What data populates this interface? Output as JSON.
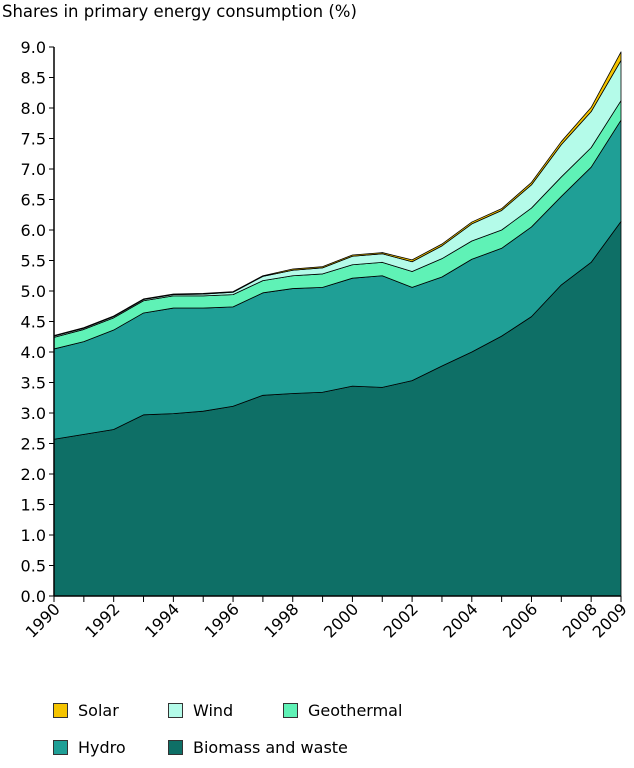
{
  "chart_data": {
    "type": "area",
    "stacked": true,
    "title": "Shares in primary energy consumption (%)",
    "xlabel": "",
    "ylabel": "",
    "x": [
      1990,
      1991,
      1992,
      1993,
      1994,
      1995,
      1996,
      1997,
      1998,
      1999,
      2000,
      2001,
      2002,
      2003,
      2004,
      2005,
      2006,
      2007,
      2008,
      2009
    ],
    "x_tick_labels": [
      "1990",
      "1992",
      "1994",
      "1996",
      "1998",
      "2000",
      "2002",
      "2004",
      "2006",
      "2008",
      "2009"
    ],
    "y_tick_labels": [
      "0.0",
      "0.5",
      "1.0",
      "1.5",
      "2.0",
      "2.5",
      "3.0",
      "3.5",
      "4.0",
      "4.5",
      "5.0",
      "5.5",
      "6.0",
      "6.5",
      "7.0",
      "7.5",
      "8.0",
      "8.5",
      "9.0"
    ],
    "ylim": [
      0,
      9
    ],
    "grid": false,
    "legend_position": "bottom",
    "series": [
      {
        "name": "Biomass and waste",
        "color": "#0e6f66",
        "values": [
          2.57,
          2.65,
          2.73,
          2.97,
          2.99,
          3.03,
          3.11,
          3.29,
          3.32,
          3.34,
          3.44,
          3.42,
          3.53,
          3.77,
          4.0,
          4.26,
          4.58,
          5.1,
          5.47,
          6.14
        ]
      },
      {
        "name": "Hydro",
        "color": "#1f9f96",
        "values": [
          1.48,
          1.52,
          1.63,
          1.67,
          1.73,
          1.69,
          1.63,
          1.68,
          1.72,
          1.72,
          1.77,
          1.83,
          1.53,
          1.46,
          1.52,
          1.44,
          1.47,
          1.45,
          1.56,
          1.66
        ]
      },
      {
        "name": "Geothermal",
        "color": "#5ff2b6",
        "values": [
          0.19,
          0.2,
          0.2,
          0.2,
          0.2,
          0.2,
          0.2,
          0.2,
          0.21,
          0.22,
          0.22,
          0.22,
          0.26,
          0.3,
          0.3,
          0.3,
          0.31,
          0.32,
          0.32,
          0.32
        ]
      },
      {
        "name": "Wind",
        "color": "#b4fbe9",
        "values": [
          0.02,
          0.02,
          0.02,
          0.02,
          0.02,
          0.03,
          0.04,
          0.07,
          0.09,
          0.1,
          0.14,
          0.14,
          0.16,
          0.21,
          0.28,
          0.32,
          0.38,
          0.53,
          0.59,
          0.66
        ]
      },
      {
        "name": "Solar",
        "color": "#f5c400",
        "values": [
          0.01,
          0.01,
          0.01,
          0.01,
          0.01,
          0.01,
          0.01,
          0.01,
          0.02,
          0.02,
          0.02,
          0.02,
          0.03,
          0.03,
          0.03,
          0.03,
          0.04,
          0.05,
          0.07,
          0.14
        ]
      }
    ]
  }
}
